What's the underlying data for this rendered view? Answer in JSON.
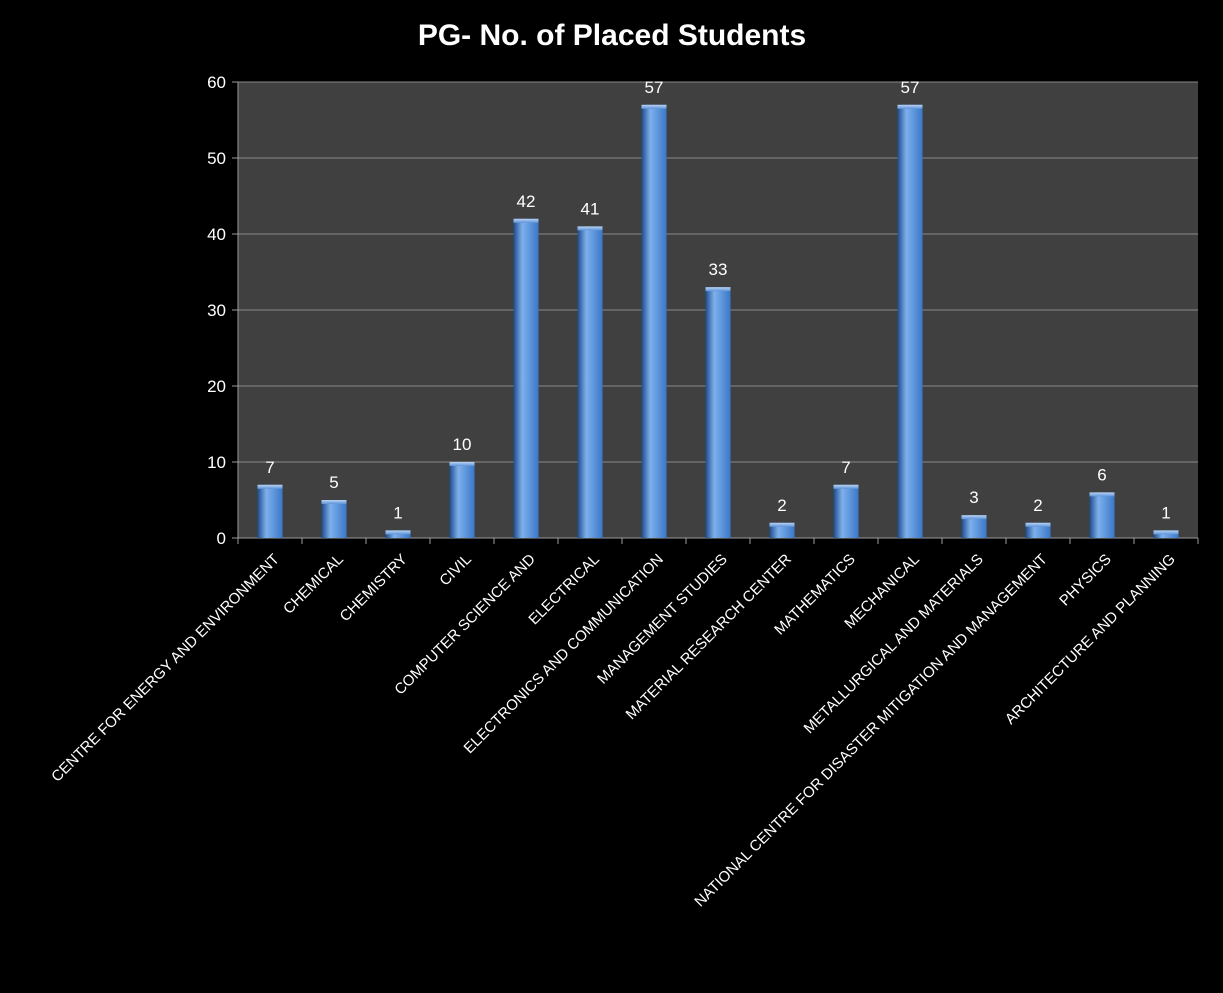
{
  "chart_data": {
    "type": "bar",
    "title": "PG-  No. of Placed Students",
    "xlabel": "",
    "ylabel": "",
    "ylim": [
      0,
      60
    ],
    "yticks": [
      0,
      10,
      20,
      30,
      40,
      50,
      60
    ],
    "grid": true,
    "legend": "none",
    "categories": [
      "CENTRE FOR ENERGY AND ENVIRONMENT",
      "CHEMICAL",
      "CHEMISTRY",
      "CIVIL",
      "COMPUTER SCIENCE AND",
      "ELECTRICAL",
      "ELECTRONICS AND COMMUNICATION",
      "MANAGEMENT STUDIES",
      "MATERIAL RESEARCH CENTER",
      "MATHEMATICS",
      "MECHANICAL",
      "METALLURGICAL AND MATERIALS",
      "NATIONAL CENTRE FOR DISASTER MITIGATION AND MANAGEMENT",
      "PHYSICS",
      "ARCHITECTURE AND PLANNING"
    ],
    "values": [
      7,
      5,
      1,
      10,
      42,
      41,
      57,
      33,
      2,
      7,
      57,
      3,
      2,
      6,
      1
    ],
    "colors": {
      "page_bg": "#000000",
      "plot_bg": "#404040",
      "grid": "#8a8a8a",
      "bar_light": "#7fb0ec",
      "bar_mid": "#3a78c8",
      "bar_dark": "#1c4a8a",
      "text": "#ffffff"
    }
  }
}
